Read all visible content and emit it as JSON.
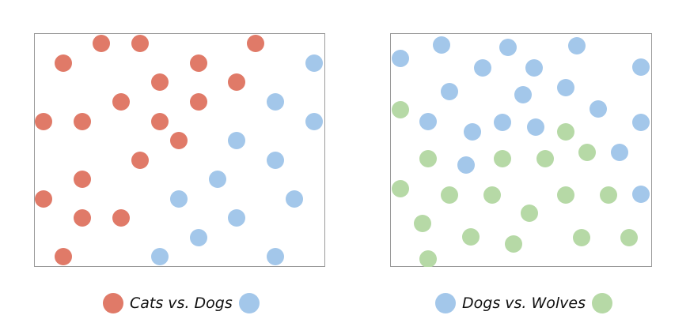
{
  "colors": {
    "cat": "#e07a68",
    "dog": "#a3c7ea",
    "wolf": "#b6d9a6",
    "frame": "#9a9a9a"
  },
  "chart_data": [
    {
      "type": "scatter",
      "title": "",
      "xlim": [
        0,
        368
      ],
      "ylim": [
        0,
        296
      ],
      "legend": {
        "text": "Cats vs. Dogs",
        "placement": "bottom-center",
        "left_color": "cat",
        "right_color": "dog"
      },
      "series": [
        {
          "color": "cat",
          "points": [
            [
              85,
              283
            ],
            [
              134,
              283
            ],
            [
              280,
              283
            ],
            [
              37,
              258
            ],
            [
              208,
              258
            ],
            [
              159,
              234
            ],
            [
              256,
              234
            ],
            [
              110,
              209
            ],
            [
              208,
              209
            ],
            [
              12,
              184
            ],
            [
              61,
              184
            ],
            [
              159,
              184
            ],
            [
              183,
              160
            ],
            [
              134,
              135
            ],
            [
              61,
              111
            ],
            [
              12,
              86
            ],
            [
              61,
              62
            ],
            [
              110,
              62
            ],
            [
              37,
              13
            ]
          ]
        },
        {
          "color": "dog",
          "points": [
            [
              354,
              258
            ],
            [
              305,
              209
            ],
            [
              354,
              184
            ],
            [
              256,
              160
            ],
            [
              305,
              135
            ],
            [
              232,
              111
            ],
            [
              183,
              86
            ],
            [
              329,
              86
            ],
            [
              256,
              62
            ],
            [
              208,
              37
            ],
            [
              159,
              13
            ],
            [
              305,
              13
            ]
          ]
        }
      ]
    },
    {
      "type": "scatter",
      "title": "",
      "xlim": [
        0,
        331
      ],
      "ylim": [
        0,
        296
      ],
      "legend": {
        "text": "Dogs vs. Wolves",
        "placement": "bottom-center",
        "left_color": "dog",
        "right_color": "wolf"
      },
      "series": [
        {
          "color": "dog",
          "points": [
            [
              65,
              281
            ],
            [
              149,
              278
            ],
            [
              236,
              280
            ],
            [
              13,
              264
            ],
            [
              117,
              252
            ],
            [
              182,
              252
            ],
            [
              317,
              253
            ],
            [
              75,
              222
            ],
            [
              168,
              218
            ],
            [
              222,
              227
            ],
            [
              263,
              200
            ],
            [
              48,
              184
            ],
            [
              104,
              171
            ],
            [
              142,
              183
            ],
            [
              184,
              177
            ],
            [
              317,
              183
            ],
            [
              290,
              145
            ],
            [
              96,
              129
            ],
            [
              317,
              92
            ]
          ]
        },
        {
          "color": "wolf",
          "points": [
            [
              13,
              199
            ],
            [
              222,
              171
            ],
            [
              48,
              137
            ],
            [
              142,
              137
            ],
            [
              196,
              137
            ],
            [
              249,
              145
            ],
            [
              13,
              99
            ],
            [
              75,
              91
            ],
            [
              129,
              91
            ],
            [
              222,
              91
            ],
            [
              276,
              91
            ],
            [
              176,
              68
            ],
            [
              41,
              55
            ],
            [
              102,
              38
            ],
            [
              156,
              29
            ],
            [
              242,
              37
            ],
            [
              302,
              37
            ],
            [
              48,
              10
            ]
          ]
        }
      ]
    }
  ]
}
